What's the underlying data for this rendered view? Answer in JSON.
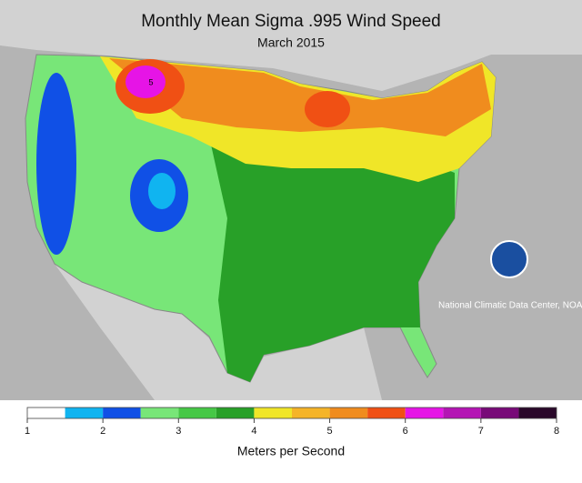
{
  "header": {
    "title": "Monthly Mean Sigma .995 Wind Speed",
    "subtitle": "March 2015"
  },
  "map": {
    "credit": "National Climatic Data Center, NOAA",
    "annotation": "5"
  },
  "colorbar": {
    "bins": [
      1,
      1.5,
      2,
      2.5,
      3,
      3.5,
      4,
      4.5,
      5,
      5.5,
      6,
      6.5,
      7,
      7.5,
      8
    ],
    "colors": [
      "#ffffff",
      "#10b4f0",
      "#1050e6",
      "#78e678",
      "#46c846",
      "#28a028",
      "#f0e628",
      "#f5b428",
      "#f08c1e",
      "#f05014",
      "#e614e6",
      "#b414b4",
      "#780a78",
      "#2a082a"
    ],
    "xlim": [
      1,
      8
    ],
    "xticks": [
      1,
      2,
      3,
      4,
      5,
      6,
      7,
      8
    ],
    "label": "Meters per Second"
  }
}
